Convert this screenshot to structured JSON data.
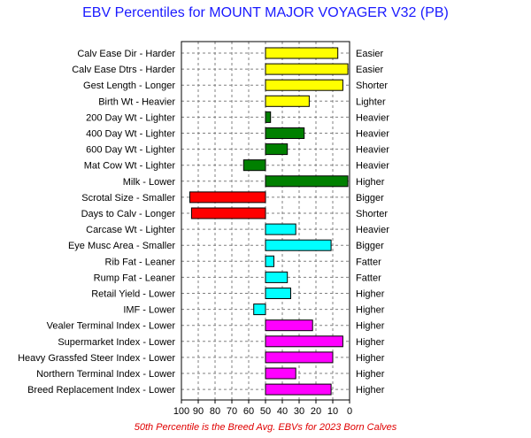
{
  "title": "EBV Percentiles for MOUNT MAJOR VOYAGER V32 (PB)",
  "footnote": "50th Percentile is the Breed Avg. EBVs for 2023 Born Calves",
  "colors": {
    "calving": "#ffff00",
    "growth": "#008000",
    "fertility": "#ff0000",
    "carcase": "#00ffff",
    "index": "#ff00ff"
  },
  "chart_data": {
    "type": "bar",
    "orientation": "horizontal",
    "xlim": [
      100,
      0
    ],
    "x_ticks": [
      "100",
      "90",
      "80",
      "70",
      "60",
      "50",
      "40",
      "30",
      "20",
      "10",
      "0"
    ],
    "baseline": 50,
    "grid": true,
    "categories": [
      {
        "left": "Calv Ease Dir - Harder",
        "right": "Easier",
        "value": 7,
        "color": "#ffff00"
      },
      {
        "left": "Calv Ease Dtrs - Harder",
        "right": "Easier",
        "value": 1,
        "color": "#ffff00"
      },
      {
        "left": "Gest Length - Longer",
        "right": "Shorter",
        "value": 4,
        "color": "#ffff00"
      },
      {
        "left": "Birth Wt - Heavier",
        "right": "Lighter",
        "value": 24,
        "color": "#ffff00"
      },
      {
        "left": "200 Day Wt - Lighter",
        "right": "Heavier",
        "value": 47,
        "color": "#008000"
      },
      {
        "left": "400 Day Wt - Lighter",
        "right": "Heavier",
        "value": 27,
        "color": "#008000"
      },
      {
        "left": "600 Day Wt - Lighter",
        "right": "Heavier",
        "value": 37,
        "color": "#008000"
      },
      {
        "left": "Mat Cow Wt - Lighter",
        "right": "Heavier",
        "value": 63,
        "color": "#008000"
      },
      {
        "left": "Milk - Lower",
        "right": "Higher",
        "value": 1,
        "color": "#008000"
      },
      {
        "left": "Scrotal Size - Smaller",
        "right": "Bigger",
        "value": 95,
        "color": "#ff0000"
      },
      {
        "left": "Days to Calv - Longer",
        "right": "Shorter",
        "value": 94,
        "color": "#ff0000"
      },
      {
        "left": "Carcase Wt - Lighter",
        "right": "Heavier",
        "value": 32,
        "color": "#00ffff"
      },
      {
        "left": "Eye Musc Area - Smaller",
        "right": "Bigger",
        "value": 11,
        "color": "#00ffff"
      },
      {
        "left": "Rib Fat - Leaner",
        "right": "Fatter",
        "value": 45,
        "color": "#00ffff"
      },
      {
        "left": "Rump Fat - Leaner",
        "right": "Fatter",
        "value": 37,
        "color": "#00ffff"
      },
      {
        "left": "Retail Yield - Lower",
        "right": "Higher",
        "value": 35,
        "color": "#00ffff"
      },
      {
        "left": "IMF - Lower",
        "right": "Higher",
        "value": 57,
        "color": "#00ffff"
      },
      {
        "left": "Vealer Terminal Index - Lower",
        "right": "Higher",
        "value": 22,
        "color": "#ff00ff"
      },
      {
        "left": "Supermarket Index - Lower",
        "right": "Higher",
        "value": 4,
        "color": "#ff00ff"
      },
      {
        "left": "Heavy Grassfed Steer Index - Lower",
        "right": "Higher",
        "value": 10,
        "color": "#ff00ff"
      },
      {
        "left": "Northern Terminal Index - Lower",
        "right": "Higher",
        "value": 32,
        "color": "#ff00ff"
      },
      {
        "left": "Breed Replacement Index - Lower",
        "right": "Higher",
        "value": 11,
        "color": "#ff00ff"
      }
    ]
  }
}
